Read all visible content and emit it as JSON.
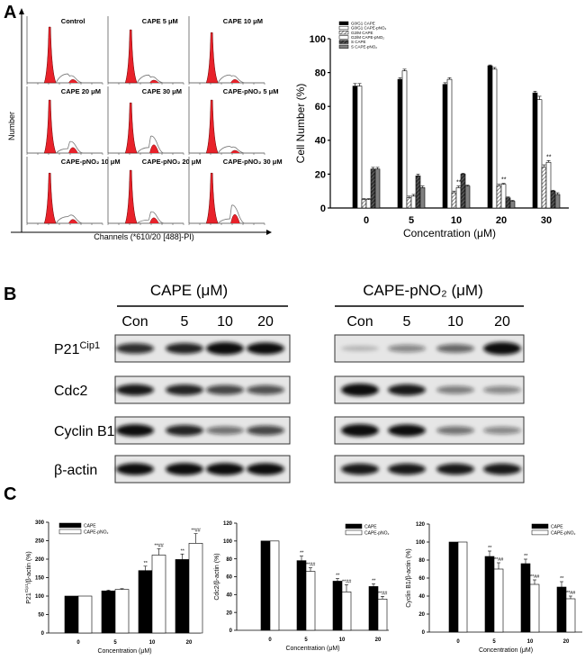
{
  "panel_labels": {
    "a": "A",
    "b": "B",
    "c": "C"
  },
  "histograms": {
    "y_label": "Number",
    "x_label": "Channels (*610/20 [488]-PI)",
    "panels": [
      {
        "label": "Control",
        "g1": 1.0,
        "g2": 0.12,
        "s": 0.16
      },
      {
        "label": "CAPE 5 μM",
        "g1": 0.95,
        "g2": 0.1,
        "s": 0.14
      },
      {
        "label": "CAPE 10 μM",
        "g1": 0.9,
        "g2": 0.12,
        "s": 0.14
      },
      {
        "label": "CAPE 20 μM",
        "g1": 0.95,
        "g2": 0.2,
        "s": 0.08
      },
      {
        "label": "CAPE 30 μM",
        "g1": 0.9,
        "g2": 0.3,
        "s": 0.1
      },
      {
        "label": "CAPE-pNO₂ 5 μM",
        "g1": 0.95,
        "g2": 0.1,
        "s": 0.12
      },
      {
        "label": "CAPE-pNO₂ 10 μM",
        "g1": 0.9,
        "g2": 0.14,
        "s": 0.12
      },
      {
        "label": "CAPE-pNO₂ 20 μM",
        "g1": 0.95,
        "g2": 0.2,
        "s": 0.06
      },
      {
        "label": "CAPE-pNO₂ 30 μM",
        "g1": 0.9,
        "g2": 0.32,
        "s": 0.08
      }
    ]
  },
  "blots": {
    "group_titles": [
      "CAPE (μM)",
      "CAPE-pNO₂ (μM)"
    ],
    "lane_labels": [
      "Con",
      "5",
      "10",
      "20"
    ],
    "rows": [
      {
        "label": "P21",
        "sup": "Cip1",
        "left": [
          0.7,
          0.75,
          1.0,
          0.9
        ],
        "right": [
          0.05,
          0.3,
          0.45,
          1.0
        ]
      },
      {
        "label": "Cdc2",
        "sup": "",
        "right": [
          1.0,
          0.8,
          0.35,
          0.3
        ]
      },
      {
        "label": "Cyclin B1",
        "sup": "",
        "right": [
          1.0,
          0.9,
          0.4,
          0.3
        ]
      },
      {
        "label": "β-actin",
        "sup": ""
      }
    ]
  },
  "chart_data": [
    {
      "type": "bar",
      "title": "",
      "xlabel": "Concentration (μM)",
      "ylabel": "Cell Number (%)",
      "ylim": [
        0,
        100
      ],
      "yticks": [
        0,
        20,
        40,
        60,
        80,
        100
      ],
      "categories": [
        "0",
        "5",
        "10",
        "20",
        "30"
      ],
      "legend_position": "top-left",
      "series": [
        {
          "name": "G0/G1 CAPE",
          "values": [
            72,
            76,
            73,
            84,
            68
          ],
          "errors": [
            1.5,
            1,
            1,
            0.5,
            1
          ],
          "fill": "#000000"
        },
        {
          "name": "G0/G1 CAPE-pNO₂",
          "values": [
            72,
            81,
            76,
            82,
            64
          ],
          "errors": [
            1.5,
            1,
            1,
            1,
            2
          ],
          "fill": "#ffffff"
        },
        {
          "name": "G2/M CAPE",
          "values": [
            5,
            6,
            9,
            13,
            24
          ],
          "errors": [
            0.5,
            1,
            1,
            1,
            1.5
          ],
          "fill": "hatch"
        },
        {
          "name": "G2/M CAPE-pNO₂",
          "values": [
            5,
            7,
            12,
            14,
            27
          ],
          "errors": [
            0.5,
            1,
            1,
            0.5,
            1
          ],
          "fill": "#ffffff",
          "annotations": [
            "",
            "",
            "**",
            "**",
            "**"
          ]
        },
        {
          "name": "S CAPE",
          "values": [
            23,
            19,
            20,
            6,
            10
          ],
          "errors": [
            1,
            1,
            0.5,
            0.5,
            0.5
          ],
          "fill": "darkhatch"
        },
        {
          "name": "S CAPE-pNO₂",
          "values": [
            23,
            12,
            13,
            4,
            8
          ],
          "errors": [
            1,
            1,
            0.5,
            0.5,
            1
          ],
          "fill": "#808080"
        }
      ]
    },
    {
      "type": "bar",
      "xlabel": "Concentration (μM)",
      "ylabel": "P21Cip1/β-actin (%)",
      "ylabel_main": "P21",
      "ylabel_sup": "Cip1",
      "ylabel_rest": "/β-actin (%)",
      "ylim": [
        0,
        300
      ],
      "yticks": [
        0,
        50,
        100,
        150,
        200,
        250,
        300
      ],
      "categories": [
        "0",
        "5",
        "10",
        "20"
      ],
      "legend_position": "top-left",
      "series": [
        {
          "name": "CAPE",
          "values": [
            100,
            114,
            169,
            199
          ],
          "errors": [
            0,
            2,
            12,
            15
          ],
          "fill": "#000000",
          "annotations": [
            "",
            "",
            "**",
            "**"
          ]
        },
        {
          "name": "CAPE-pNO₂",
          "values": [
            100,
            118,
            211,
            243
          ],
          "errors": [
            0,
            2,
            17,
            26
          ],
          "fill": "#ffffff",
          "annotations": [
            "",
            "",
            "**##",
            "**##"
          ]
        }
      ]
    },
    {
      "type": "bar",
      "xlabel": "Concentration (μM)",
      "ylabel": "Cdc2/β-actin (%)",
      "ylim": [
        0,
        120
      ],
      "yticks": [
        0,
        20,
        40,
        60,
        80,
        100,
        120
      ],
      "categories": [
        "0",
        "5",
        "10",
        "20"
      ],
      "legend_position": "top-right",
      "series": [
        {
          "name": "CAPE",
          "values": [
            100,
            78,
            55,
            49
          ],
          "errors": [
            0,
            5,
            3,
            3
          ],
          "fill": "#000000",
          "annotations": [
            "",
            "**",
            "**",
            "**"
          ]
        },
        {
          "name": "CAPE-pNO₂",
          "values": [
            100,
            66,
            43,
            35
          ],
          "errors": [
            0,
            4,
            8,
            3
          ],
          "fill": "#ffffff",
          "annotations": [
            "",
            "**##",
            "**##",
            "**##"
          ]
        }
      ]
    },
    {
      "type": "bar",
      "xlabel": "Concentration (μM)",
      "ylabel": "Cyclin B1/β-actin (%)",
      "ylim": [
        0,
        120
      ],
      "yticks": [
        0,
        20,
        40,
        60,
        80,
        100,
        120
      ],
      "categories": [
        "0",
        "5",
        "10",
        "20"
      ],
      "legend_position": "top-right",
      "series": [
        {
          "name": "CAPE",
          "values": [
            100,
            84,
            76,
            50
          ],
          "errors": [
            0,
            6,
            5,
            6
          ],
          "fill": "#000000",
          "annotations": [
            "",
            "**",
            "**",
            "**"
          ]
        },
        {
          "name": "CAPE-pNO₂",
          "values": [
            100,
            70,
            53,
            37
          ],
          "errors": [
            0,
            7,
            5,
            3
          ],
          "fill": "#ffffff",
          "annotations": [
            "",
            "**##",
            "**##",
            "**##"
          ]
        }
      ]
    }
  ]
}
